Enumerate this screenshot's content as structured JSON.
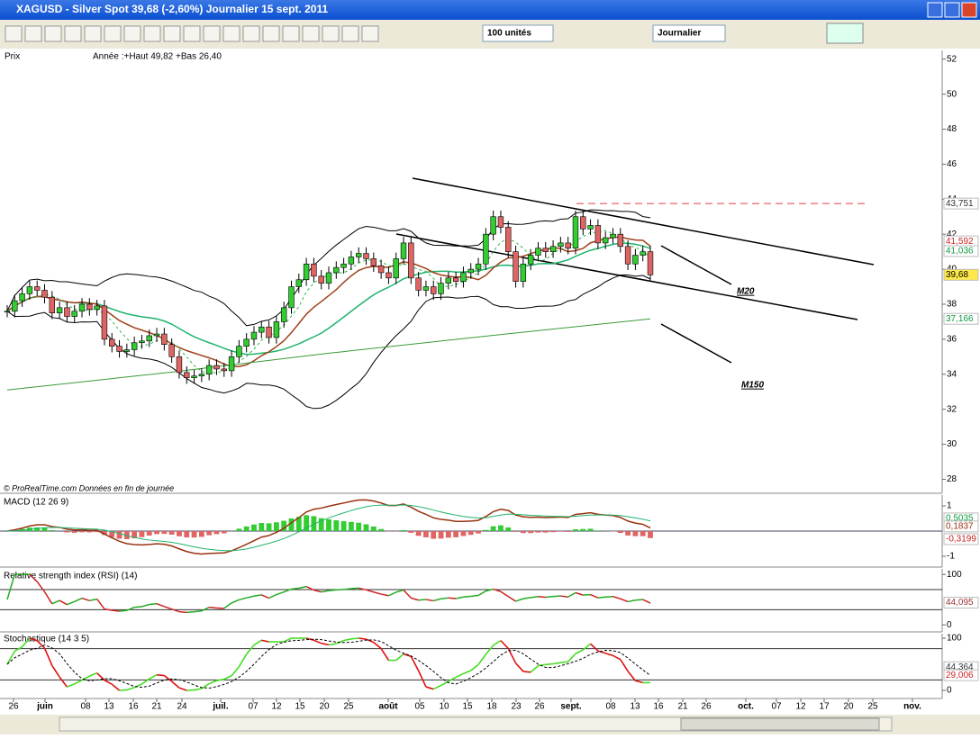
{
  "window": {
    "title": "XAGUSD - Silver Spot    39,68 (-2,60%)    Journalier  15 sept. 2011"
  },
  "toolbar": {
    "units": "100 unités",
    "period": "Journalier"
  },
  "price_panel": {
    "label": "Prix",
    "annotation": "Année :+Haut 49,82 +Bas 26,40",
    "footer": "© ProRealTime.com  Données en fin de journée",
    "ylim": [
      27.2,
      52.5
    ],
    "yticks": [
      28,
      30,
      32,
      34,
      36,
      38,
      40,
      42,
      44,
      46,
      48,
      50,
      52
    ],
    "markers": [
      {
        "value": 43.751,
        "label": "43,751",
        "color": "#333333"
      },
      {
        "value": 41.592,
        "label": "41,592",
        "color": "#cc2222"
      },
      {
        "value": 41.036,
        "label": "41,036",
        "color": "#119944"
      },
      {
        "value": 39.68,
        "label": "39,68",
        "color": "#000000"
      },
      {
        "value": 37.166,
        "label": "37,166",
        "color": "#119944"
      }
    ],
    "closes": [
      37.6,
      38.2,
      38.6,
      39.0,
      38.8,
      38.4,
      37.5,
      37.8,
      37.3,
      37.6,
      38.0,
      37.7,
      37.9,
      36.0,
      35.6,
      35.3,
      35.4,
      35.8,
      35.9,
      36.2,
      36.3,
      35.7,
      35.0,
      34.1,
      33.8,
      33.9,
      34.0,
      34.5,
      34.3,
      34.2,
      35.0,
      35.6,
      36.0,
      36.4,
      36.7,
      36.1,
      37.0,
      37.8,
      39.0,
      39.4,
      40.3,
      39.6,
      39.2,
      39.8,
      40.1,
      40.3,
      40.7,
      40.9,
      40.6,
      40.2,
      39.8,
      39.5,
      40.6,
      41.5,
      39.5,
      38.8,
      39.0,
      38.6,
      39.2,
      39.5,
      39.3,
      39.8,
      40.0,
      40.3,
      42.0,
      43.0,
      42.4,
      41.0,
      39.3,
      40.3,
      40.8,
      41.2,
      41.0,
      41.3,
      41.5,
      41.2,
      43.0,
      42.3,
      42.5,
      41.5,
      41.8,
      42.0,
      41.3,
      40.3,
      40.8,
      41.0,
      39.68
    ],
    "m150": [
      33.1,
      34.1,
      35.2,
      36.2,
      37.166
    ],
    "notes": [
      "M20",
      "M150"
    ]
  },
  "macd_panel": {
    "label": "MACD (12 26 9)",
    "ylim": [
      -1.43,
      1.43
    ],
    "yticks": [
      1,
      -1
    ],
    "markers": [
      {
        "value": 0.5035,
        "label": "0,5035",
        "color": "#119944"
      },
      {
        "value": 0.1837,
        "label": "0,1837",
        "color": "#993311"
      },
      {
        "value": -0.3199,
        "label": "-0,3199",
        "color": "#cc2222"
      }
    ]
  },
  "rsi_panel": {
    "label": "Relative strength index (RSI) (14)",
    "ylim": [
      -14,
      111
    ],
    "yticks": [
      100,
      0
    ],
    "levels": [
      70,
      30
    ],
    "markers": [
      {
        "value": 44.095,
        "label": "44,095",
        "color": "#993333"
      }
    ]
  },
  "stoch_panel": {
    "label": "Stochastique (14 3 5)",
    "ylim": [
      -15.5,
      108.6
    ],
    "yticks": [
      100,
      0
    ],
    "levels": [
      80,
      20
    ],
    "markers": [
      {
        "value": 44.364,
        "label": "44,364",
        "color": "#333333"
      },
      {
        "value": 29.006,
        "label": "29,006",
        "color": "#cc2222"
      }
    ]
  },
  "date_axis": {
    "labels": [
      "26",
      "juin",
      "08",
      "13",
      "16",
      "21",
      "24",
      "juil.",
      "07",
      "12",
      "15",
      "20",
      "25",
      "août",
      "05",
      "10",
      "15",
      "18",
      "23",
      "26",
      "sept.",
      "08",
      "13",
      "16",
      "21",
      "26",
      "oct.",
      "07",
      "12",
      "17",
      "20",
      "25",
      "nov."
    ]
  }
}
